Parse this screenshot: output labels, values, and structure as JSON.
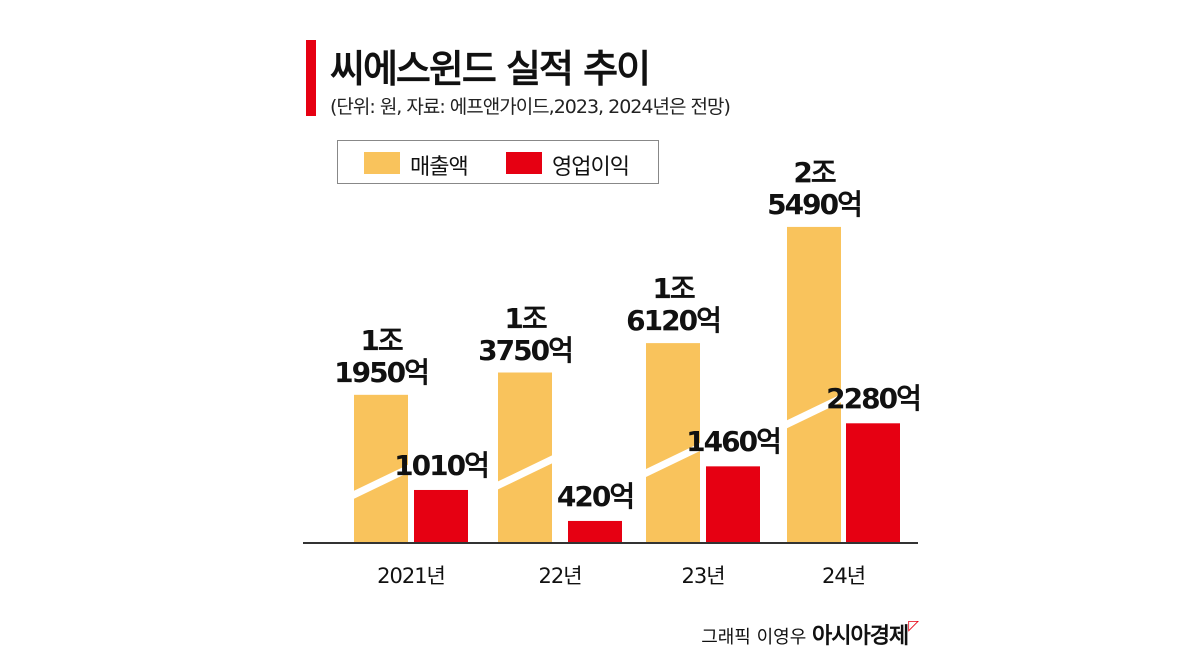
{
  "chart_data": {
    "type": "bar",
    "title": "씨에스윈드 실적 추이",
    "subtitle": "(단위: 원, 자료: 에프앤가이드,2023, 2024년은 전망)",
    "categories": [
      "2021년",
      "22년",
      "23년",
      "24년"
    ],
    "series": [
      {
        "name": "매출액",
        "color": "#f9c35c",
        "values_eok": [
          11950,
          13750,
          16120,
          25490
        ],
        "labels": [
          [
            "1조",
            "1950억"
          ],
          [
            "1조",
            "3750억"
          ],
          [
            "1조",
            "6120억"
          ],
          [
            "2조",
            "5490억"
          ]
        ]
      },
      {
        "name": "영업이익",
        "color": "#e60012",
        "values_eok": [
          1010,
          420,
          1460,
          2280
        ],
        "labels": [
          "1010억",
          "420억",
          "1460억",
          "2280억"
        ]
      }
    ],
    "axis_break_on": "매출액",
    "legend": "top-left",
    "grid": false
  },
  "credit": {
    "text": "그래픽 이영우",
    "logo": "아시아경제"
  }
}
